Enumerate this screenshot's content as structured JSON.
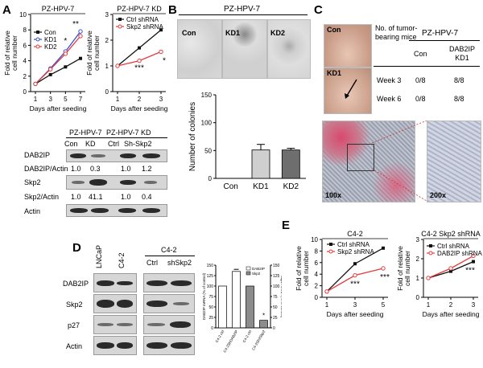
{
  "panels": {
    "A": "A",
    "B": "B",
    "C": "C",
    "D": "D",
    "E": "E"
  },
  "colors": {
    "black": "#111111",
    "red": "#e23b3b",
    "blue": "#3a4fd0",
    "bar_light": "#c8c8c8",
    "bar_dark": "#6e6e6e"
  },
  "panelA": {
    "chart1": {
      "title": "PZ-HPV-7",
      "ylabel": "Fold of relative cell number",
      "xlabel": "Days after seeding",
      "legend": [
        "Con",
        "KD1",
        "KD2"
      ],
      "sig": [
        "*",
        "**"
      ]
    },
    "chart2": {
      "title": "PZ-HPV-7 KD",
      "ylabel": "Fold of relative cell number",
      "xlabel": "Days after seeding",
      "legend": [
        "Ctrl shRNA",
        "Skp2 shRNA"
      ],
      "sig": [
        "***",
        "*"
      ]
    },
    "blot": {
      "header1": "PZ-HPV-7",
      "header2": "PZ-HPV-7 KD",
      "lanes": [
        "Con",
        "KD",
        "Ctrl",
        "Sh-Skp2"
      ],
      "rows": {
        "r1": "DAB2IP",
        "r2": "DAB2IP/Actin",
        "r3": "Skp2",
        "r4": "Skp2/Actin",
        "r5": "Actin"
      },
      "dab2ip_ratio": [
        "1.0",
        "0.3",
        "1.0",
        "1.2"
      ],
      "skp2_ratio": [
        "1.0",
        "41.1",
        "1.0",
        "0.4"
      ]
    }
  },
  "panelB": {
    "header": "PZ-HPV-7",
    "labels": [
      "Con",
      "KD1",
      "KD2"
    ]
  },
  "panelC": {
    "photo_labels": [
      "Con",
      "KD1"
    ],
    "table_label": "No. of tumor-bearing mice",
    "table_header": "PZ-HPV-7",
    "cols": [
      "Con",
      "DAB2IP KD1"
    ],
    "rows": [
      [
        "Week 3",
        "0/8",
        "8/8"
      ],
      [
        "Week 6",
        "0/8",
        "8/8"
      ]
    ],
    "mag": [
      "100x",
      "200x"
    ]
  },
  "panelD": {
    "top": {
      "c1": "LNCaP",
      "c2": "C4-2",
      "c3": "C4-2",
      "c4": "Ctrl",
      "c5": "shSkp2"
    },
    "blot_rows": {
      "r1": "DAB2IP",
      "r2": "Skp2",
      "r3": "p27",
      "r4": "Actin"
    },
    "legend": [
      "DAB2IP",
      "Skp2"
    ],
    "left_axis": "DAB2IP mRNA (% of control)",
    "right_axis": "Skp2 mRNA (% of control)",
    "sig": "*"
  },
  "panelE": {
    "chart1": {
      "title": "C4-2",
      "ylabel": "Fold of relative cell number",
      "xlabel": "Days after seeding",
      "legend": [
        "Ctrl shRNA",
        "Skp2 shRNA"
      ],
      "sig": [
        "***",
        "***"
      ]
    },
    "chart2": {
      "title": "C4-2 Skp2 shRNA",
      "ylabel": "Fold of relative cell number",
      "xlabel": "Days after seeding",
      "legend": [
        "Ctrl shRNA",
        "DAB2IP shRNA"
      ],
      "sig": [
        "***"
      ]
    }
  },
  "chart_data": [
    {
      "panel": "A-left",
      "type": "line",
      "title": "PZ-HPV-7",
      "xlabel": "Days after seeding",
      "ylabel": "Fold of relative cell number",
      "x": [
        1,
        3,
        5,
        7
      ],
      "ylim": [
        0,
        10
      ],
      "yticks": [
        0,
        2,
        4,
        6,
        8,
        10
      ],
      "series": [
        {
          "name": "Con",
          "values": [
            1,
            2.2,
            3.2,
            4.3
          ],
          "color": "#111111"
        },
        {
          "name": "KD1",
          "values": [
            1,
            3,
            5.2,
            7.8
          ],
          "color": "#3a4fd0"
        },
        {
          "name": "KD2",
          "values": [
            1,
            2.9,
            4.9,
            7.2
          ],
          "color": "#e23b3b"
        }
      ]
    },
    {
      "panel": "A-right",
      "type": "line",
      "title": "PZ-HPV-7 KD",
      "xlabel": "Days after seeding",
      "ylabel": "Fold of relative cell number",
      "x": [
        1,
        2,
        3
      ],
      "ylim": [
        0,
        3
      ],
      "yticks": [
        0,
        1,
        2,
        3
      ],
      "series": [
        {
          "name": "Ctrl shRNA",
          "values": [
            1,
            1.7,
            2.4
          ],
          "color": "#111111"
        },
        {
          "name": "Skp2 shRNA",
          "values": [
            1,
            1.2,
            1.55
          ],
          "color": "#e23b3b"
        }
      ]
    },
    {
      "panel": "B",
      "type": "bar",
      "ylabel": "Number of colonies",
      "categories": [
        "Con",
        "KD1",
        "KD2"
      ],
      "values": [
        0,
        51,
        51
      ],
      "errors": [
        0,
        10,
        3
      ],
      "ylim": [
        0,
        150
      ],
      "yticks": [
        0,
        50,
        100,
        150
      ]
    },
    {
      "panel": "D",
      "type": "bar",
      "categories": [
        "C4-2 ctrl",
        "C4-2ShDAB2IP",
        "C4-2 ctrl",
        "C4-2Sh2Skp2"
      ],
      "ylim": [
        0,
        150
      ],
      "yticks": [
        0,
        25,
        50,
        75,
        100,
        125,
        150
      ],
      "series": [
        {
          "name": "DAB2IP",
          "values": [
            100,
            135,
            null,
            null
          ]
        },
        {
          "name": "Skp2",
          "values": [
            null,
            null,
            100,
            18
          ]
        }
      ]
    },
    {
      "panel": "E-left",
      "type": "line",
      "title": "C4-2",
      "xlabel": "Days after seeding",
      "ylabel": "Fold of relative cell number",
      "x": [
        1,
        3,
        5
      ],
      "ylim": [
        0,
        10
      ],
      "yticks": [
        0,
        2,
        4,
        6,
        8,
        10
      ],
      "series": [
        {
          "name": "Ctrl shRNA",
          "values": [
            1,
            5.8,
            8.5
          ],
          "color": "#111111"
        },
        {
          "name": "Skp2 shRNA",
          "values": [
            1,
            3.8,
            5
          ]
        }
      ]
    },
    {
      "panel": "E-right",
      "type": "line",
      "title": "C4-2 Skp2 shRNA",
      "xlabel": "Days after seeding",
      "ylabel": "Fold of relative cell number",
      "x": [
        1,
        2,
        3
      ],
      "ylim": [
        0,
        3
      ],
      "yticks": [
        0,
        1,
        2,
        3
      ],
      "series": [
        {
          "name": "Ctrl shRNA",
          "values": [
            1,
            1.35,
            1.85
          ],
          "color": "#111111"
        },
        {
          "name": "DAB2IP shRNA",
          "values": [
            1,
            1.5,
            2.15
          ],
          "color": "#e23b3b"
        }
      ]
    }
  ]
}
